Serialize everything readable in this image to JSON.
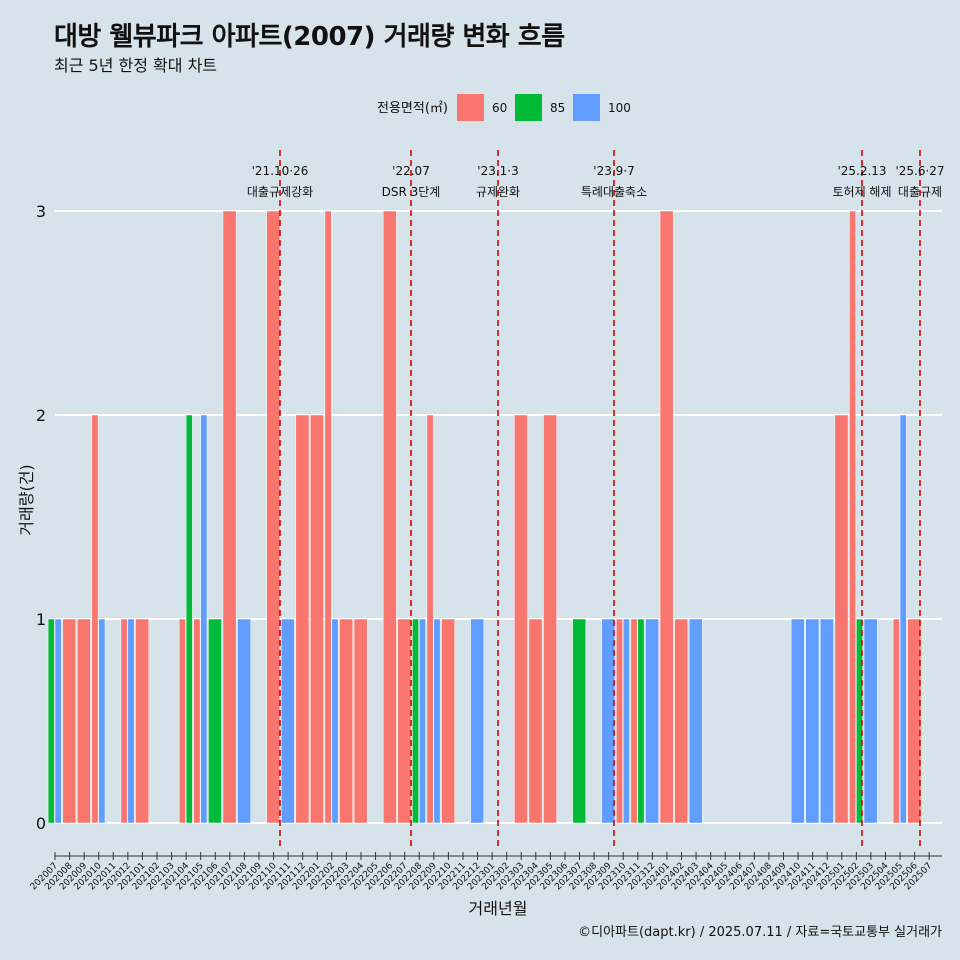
{
  "header": {
    "title": "대방 웰뷰파크 아파트(2007) 거래량 변화 흐름",
    "subtitle": "최근 5년 한정 확대 차트"
  },
  "caption": "©디아파트(dapt.kr) / 2025.07.11 / 자료=국토교통부 실거래가",
  "colors": {
    "background": "#d6e3ea",
    "s60": "#f8766d",
    "s85": "#00ba38",
    "s100": "#619cff",
    "event_line": "#dd0000",
    "grid": "#ffffff"
  },
  "chart_data": {
    "type": "bar",
    "title": "대방 웰뷰파크 아파트(2007) 거래량 변화 흐름",
    "subtitle": "최근 5년 한정 확대 차트",
    "xlabel": "거래년월",
    "ylabel": "거래량(건)",
    "ylim": [
      0,
      3
    ],
    "yticks": [
      "0",
      "1",
      "2",
      "3"
    ],
    "grid": true,
    "legend": {
      "title": "전용면적(㎡)",
      "position": "top",
      "entries": [
        "60",
        "85",
        "100"
      ]
    },
    "categories": [
      "202007",
      "202008",
      "202009",
      "202010",
      "202011",
      "202012",
      "202101",
      "202102",
      "202103",
      "202104",
      "202105",
      "202106",
      "202107",
      "202108",
      "202109",
      "202110",
      "202111",
      "202112",
      "202201",
      "202202",
      "202203",
      "202204",
      "202205",
      "202206",
      "202207",
      "202208",
      "202209",
      "202210",
      "202211",
      "202212",
      "202301",
      "202302",
      "202303",
      "202304",
      "202305",
      "202306",
      "202307",
      "202308",
      "202309",
      "202310",
      "202311",
      "202312",
      "202401",
      "202402",
      "202403",
      "202404",
      "202405",
      "202406",
      "202407",
      "202408",
      "202409",
      "202410",
      "202411",
      "202412",
      "202501",
      "202502",
      "202503",
      "202504",
      "202505",
      "202506",
      "202507"
    ],
    "series": [
      {
        "name": "60",
        "values": [
          0,
          1,
          1,
          2,
          0,
          1,
          1,
          0,
          0,
          1,
          1,
          0,
          3,
          0,
          0,
          3,
          0,
          2,
          2,
          3,
          1,
          1,
          0,
          3,
          1,
          0,
          2,
          1,
          0,
          0,
          0,
          0,
          2,
          1,
          2,
          0,
          0,
          0,
          0,
          1,
          1,
          0,
          3,
          1,
          0,
          0,
          0,
          0,
          0,
          0,
          0,
          0,
          0,
          0,
          2,
          3,
          0,
          0,
          1,
          1,
          0
        ]
      },
      {
        "name": "85",
        "values": [
          1,
          0,
          0,
          0,
          0,
          0,
          0,
          0,
          0,
          2,
          0,
          1,
          0,
          0,
          0,
          0,
          0,
          0,
          0,
          0,
          0,
          0,
          0,
          0,
          0,
          1,
          0,
          0,
          0,
          0,
          0,
          0,
          0,
          0,
          0,
          0,
          1,
          0,
          0,
          0,
          1,
          0,
          0,
          0,
          0,
          0,
          0,
          0,
          0,
          0,
          0,
          0,
          0,
          0,
          0,
          1,
          0,
          0,
          0,
          0,
          0
        ]
      },
      {
        "name": "100",
        "values": [
          1,
          0,
          0,
          1,
          0,
          1,
          0,
          0,
          0,
          0,
          2,
          0,
          0,
          1,
          0,
          0,
          1,
          0,
          0,
          1,
          0,
          0,
          0,
          0,
          0,
          1,
          1,
          0,
          0,
          1,
          0,
          0,
          0,
          0,
          0,
          0,
          0,
          0,
          1,
          1,
          0,
          1,
          0,
          0,
          1,
          0,
          0,
          0,
          0,
          0,
          0,
          1,
          1,
          1,
          0,
          0,
          1,
          0,
          2,
          0,
          0
        ]
      }
    ],
    "annotations": [
      {
        "date": "'21.10·26",
        "label": "대출규제강화",
        "at": "202110"
      },
      {
        "date": "'22.07",
        "label": "DSR 3단계",
        "at": "202207"
      },
      {
        "date": "'23.1·3",
        "label": "규제완화",
        "at": "202301"
      },
      {
        "date": "'23.9·7",
        "label": "특례대출축소",
        "at": "202309"
      },
      {
        "date": "'25.2.13",
        "label": "토허제 해제",
        "at": "202502"
      },
      {
        "date": "'25.6·27",
        "label": "대출규제",
        "at": "202506"
      }
    ]
  }
}
